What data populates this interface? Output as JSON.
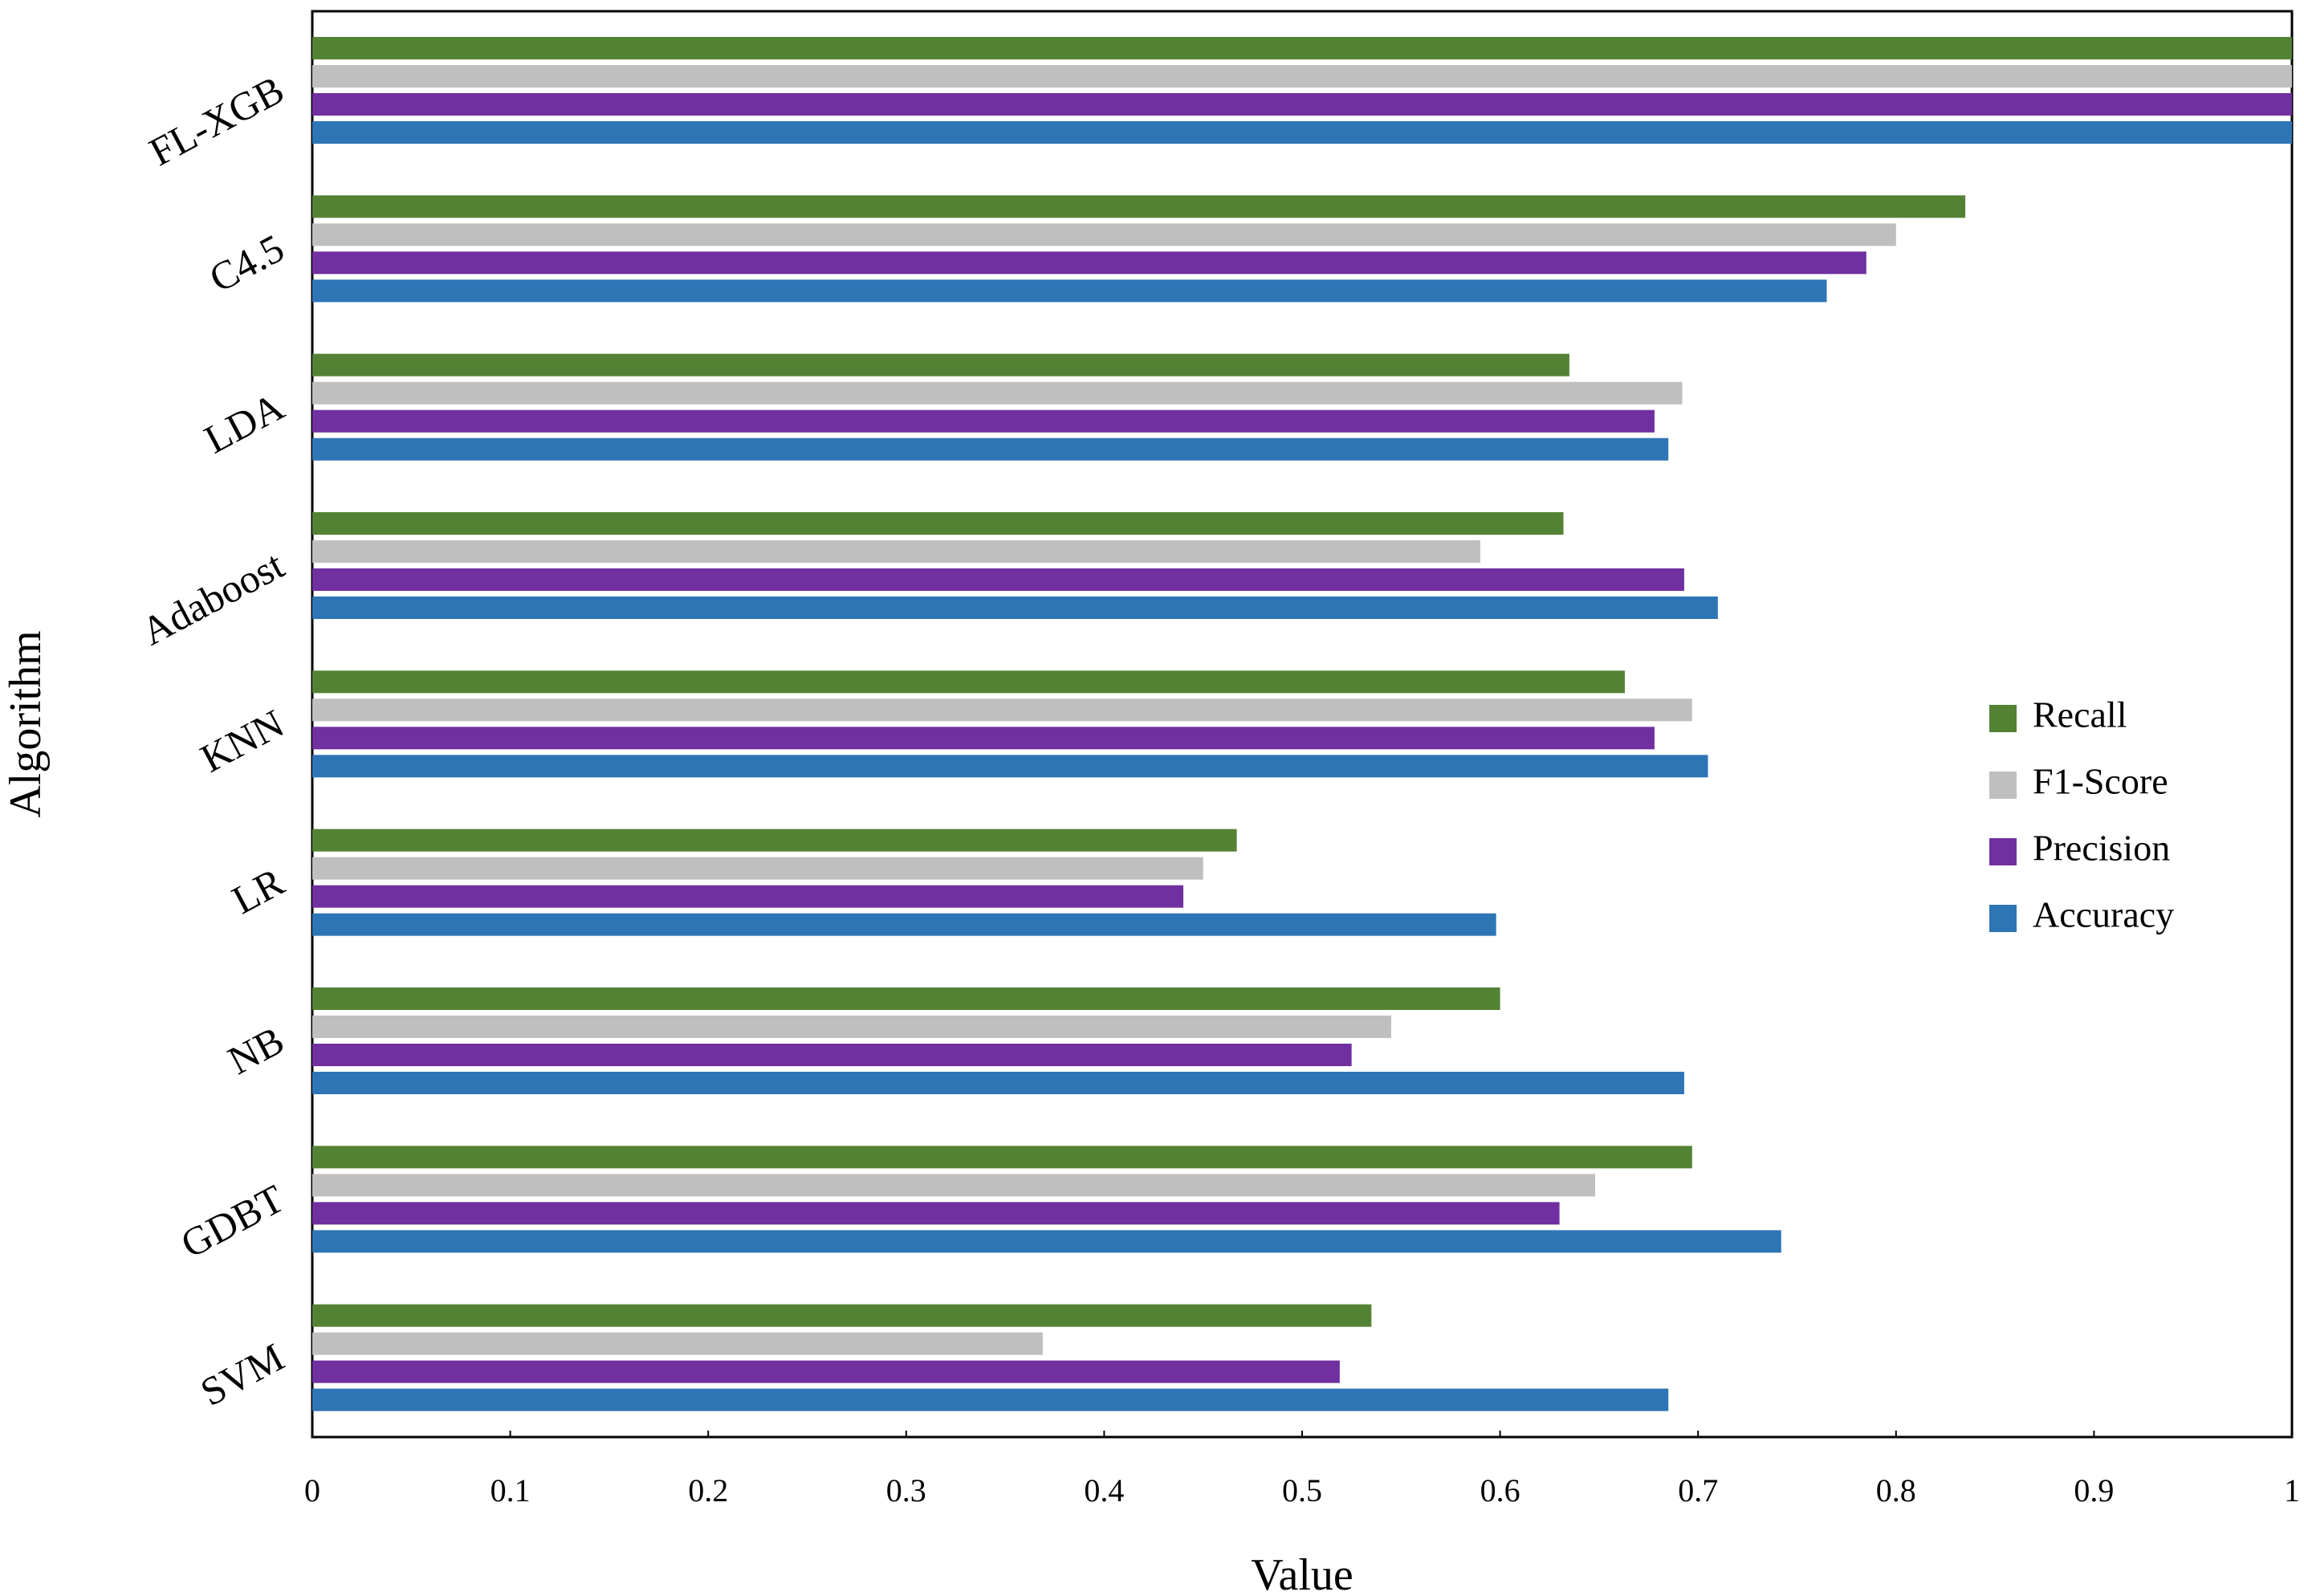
{
  "chart_data": {
    "type": "bar",
    "orientation": "horizontal",
    "title": "",
    "xlabel": "Value",
    "ylabel": "Algorithm",
    "xlim": [
      0,
      1
    ],
    "xticks": [
      0,
      0.1,
      0.2,
      0.3,
      0.4,
      0.5,
      0.6,
      0.7,
      0.8,
      0.9,
      1
    ],
    "xtick_labels": [
      "0",
      "0.1",
      "0.2",
      "0.3",
      "0.4",
      "0.5",
      "0.6",
      "0.7",
      "0.8",
      "0.9",
      "1"
    ],
    "grid": false,
    "legend_position": "right",
    "categories": [
      "FL-XGB",
      "C4.5",
      "LDA",
      "Adaboost",
      "KNN",
      "LR",
      "NB",
      "GDBT",
      "SVM"
    ],
    "series": [
      {
        "name": "Recall",
        "color": "#548235",
        "values": [
          1.0,
          0.835,
          0.635,
          0.632,
          0.663,
          0.467,
          0.6,
          0.697,
          0.535
        ]
      },
      {
        "name": "F1-Score",
        "color": "#bfbfbf",
        "values": [
          1.0,
          0.8,
          0.692,
          0.59,
          0.697,
          0.45,
          0.545,
          0.648,
          0.369
        ]
      },
      {
        "name": "Precision",
        "color": "#7030a0",
        "values": [
          1.0,
          0.785,
          0.678,
          0.693,
          0.678,
          0.44,
          0.525,
          0.63,
          0.519
        ]
      },
      {
        "name": "Accuracy",
        "color": "#2e75b6",
        "values": [
          1.0,
          0.765,
          0.685,
          0.71,
          0.705,
          0.598,
          0.693,
          0.742,
          0.685
        ]
      }
    ]
  }
}
